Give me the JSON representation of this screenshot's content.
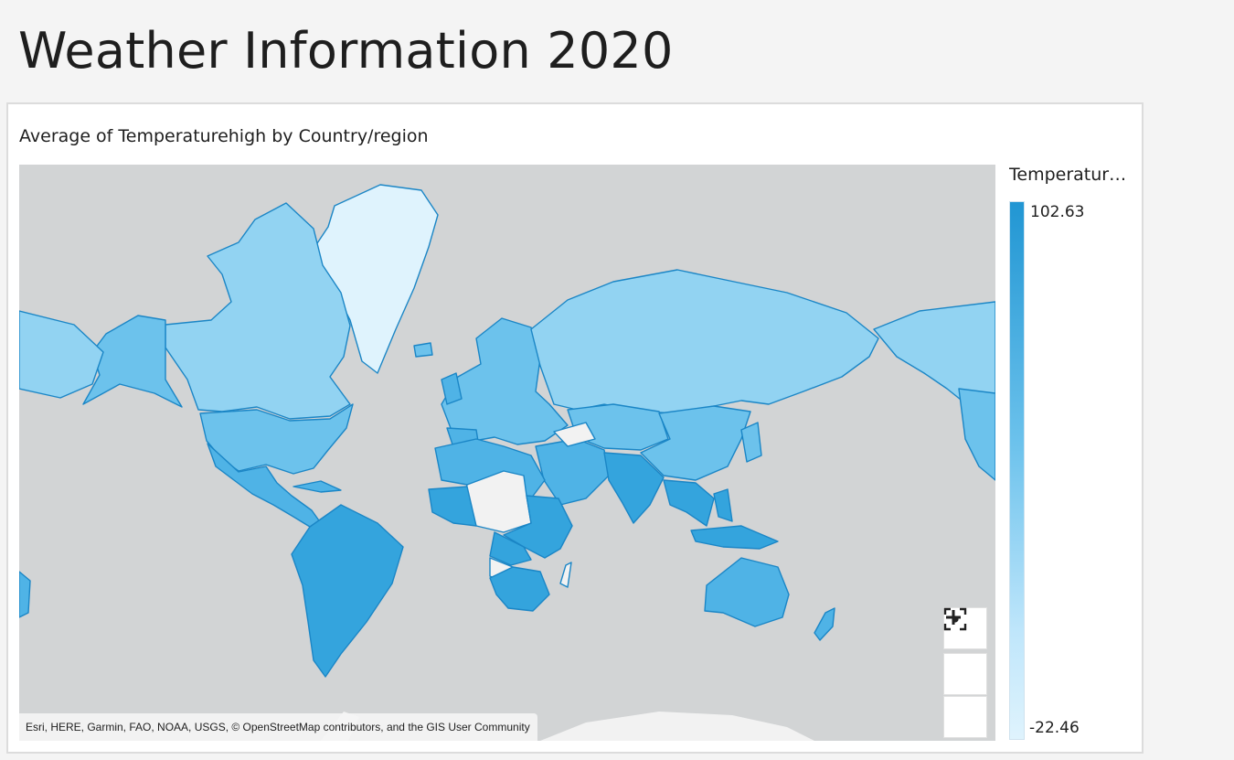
{
  "page": {
    "title": "Weather Information 2020"
  },
  "visual": {
    "title": "Average of Temperaturehigh by Country/region",
    "attribution": "Esri, HERE, Garmin, FAO, NOAA, USGS, © OpenStreetMap contributors, and the GIS User Community",
    "controls": {
      "recenter_icon": "focus-target-icon",
      "zoom_in_icon": "plus-icon",
      "zoom_out_icon": "minus-icon"
    }
  },
  "legend": {
    "title": "Temperatur…",
    "max": "102.63",
    "min": "-22.46",
    "color_high": "#2196d3",
    "color_low": "#dff3fd"
  },
  "colors": {
    "ocean": "#d2d4d5",
    "no_data": "#f2f2f2",
    "border": "#1b86c6"
  }
}
